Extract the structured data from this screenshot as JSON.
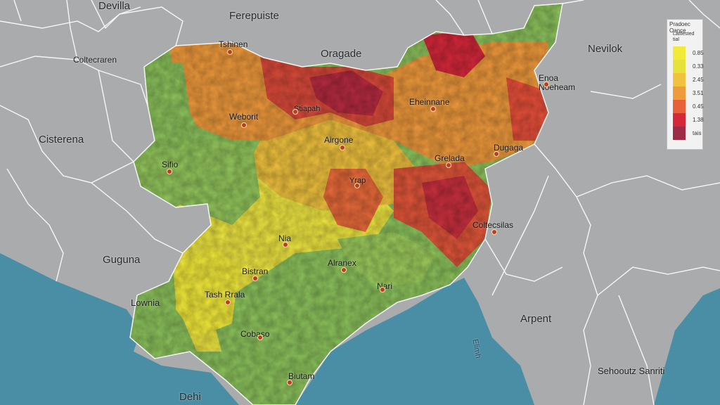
{
  "map": {
    "colors": {
      "background": "#a9abac",
      "water": "#4a8ea5",
      "borders": "#ffffff",
      "scale": [
        "#f2ea3a",
        "#e8e64a",
        "#f0c23e",
        "#ef9a3c",
        "#e8603a",
        "#d4283a",
        "#9e2a45"
      ],
      "green": "#8cc25c",
      "dot": "#c0392b"
    },
    "regions_outside": [
      "Devilla",
      "Ferepuiste",
      "Oragade",
      "Nevilok",
      "Coltecraren",
      "Cisterena",
      "Guguna",
      "Lownia",
      "Dehi",
      "Arpent",
      "Sehooutz Sanriti"
    ],
    "cities": [
      "Tshinen",
      "Weborit",
      "Stiapah",
      "Eheinnane",
      "Enoa Noeheam",
      "Sifio",
      "Airgone",
      "Grelada",
      "Dugaga",
      "Yrap",
      "Coltecsilas",
      "Nia",
      "Bistran",
      "Alranex",
      "Nari",
      "Tash Rrala",
      "Cobaso",
      "Biutam"
    ],
    "water_label": "Elimh"
  },
  "legend": {
    "title": "Pradoec Oance",
    "subtitle_line1": "Lattlested",
    "subtitle_line2": "tial",
    "values": [
      "0.85",
      "0.33",
      "2.45",
      "3.51",
      "0.45",
      "1.38",
      "tais"
    ]
  }
}
